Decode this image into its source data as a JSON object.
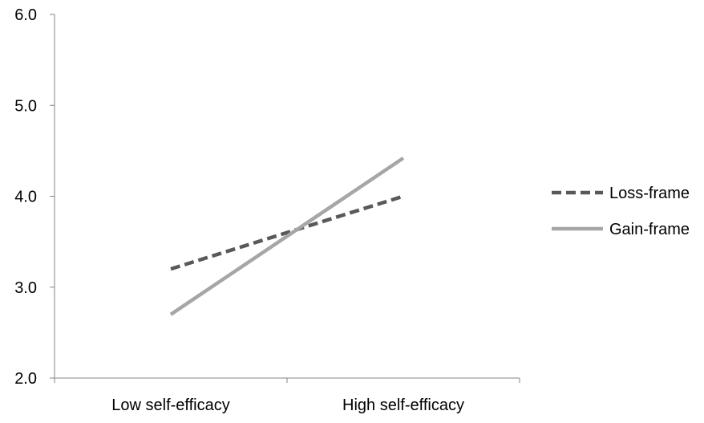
{
  "chart_data": {
    "type": "line",
    "categories": [
      "Low self-efficacy",
      "High self-efficacy"
    ],
    "ylim": [
      2.0,
      6.0
    ],
    "yticks": [
      "2.0",
      "3.0",
      "4.0",
      "5.0",
      "6.0"
    ],
    "grid": false,
    "legend_position": "right",
    "series": [
      {
        "name": "Loss-frame",
        "values": [
          3.2,
          4.0
        ],
        "color": "#595959",
        "style": "dashed"
      },
      {
        "name": "Gain-frame",
        "values": [
          2.7,
          4.42
        ],
        "color": "#a6a6a6",
        "style": "solid"
      }
    ]
  }
}
